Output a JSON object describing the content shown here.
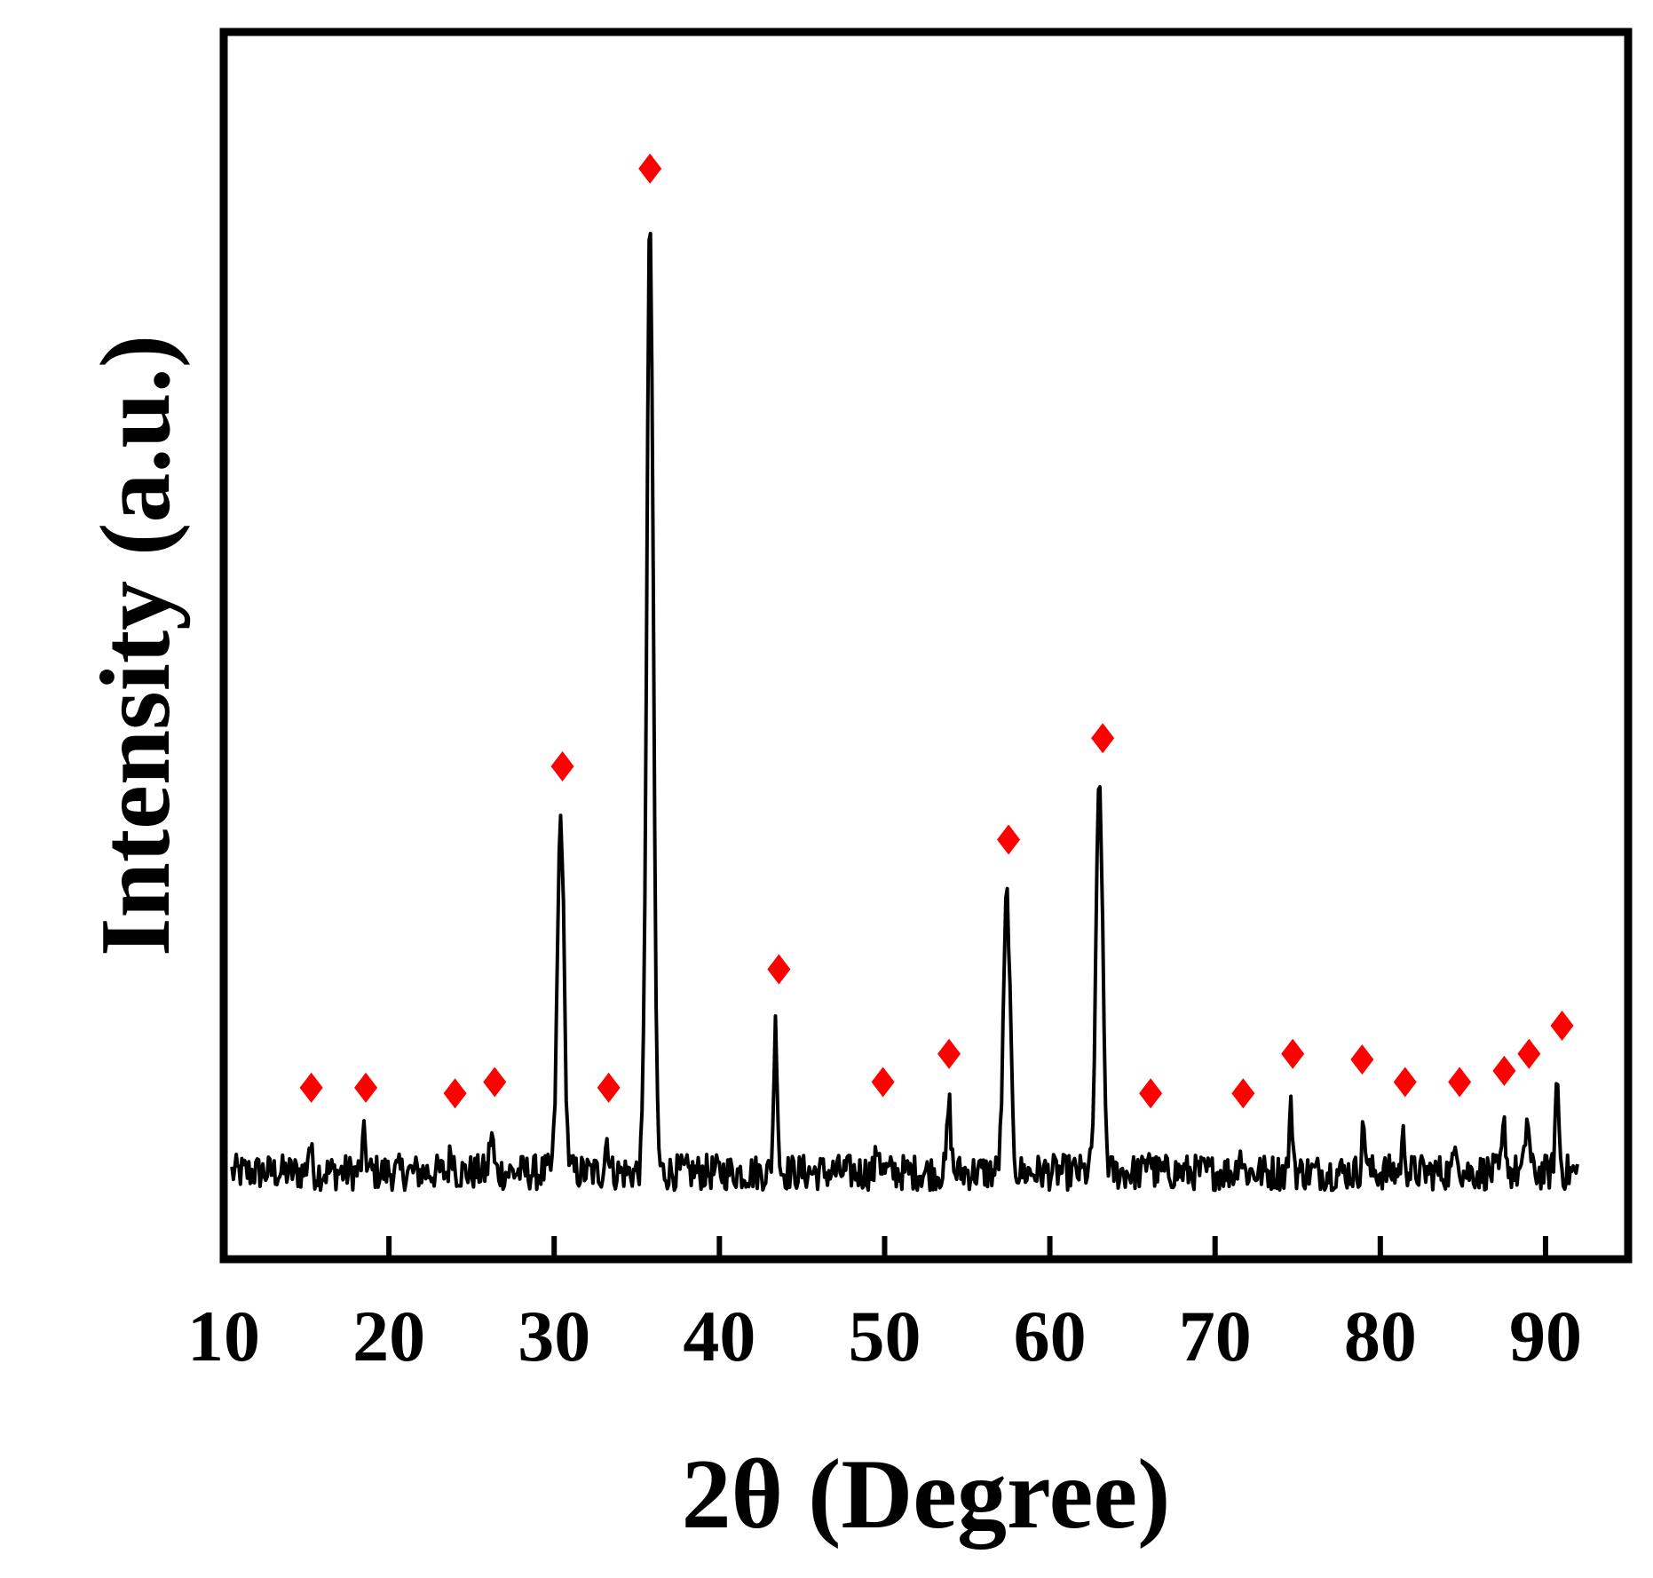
{
  "chart_data": {
    "type": "line",
    "title": "",
    "xlabel": "2θ (Degree)",
    "ylabel": "Intensity (a.u.)",
    "xlim": [
      10,
      95
    ],
    "ylim": [
      0,
      100
    ],
    "x_ticks": [
      10,
      20,
      30,
      40,
      50,
      60,
      70,
      80,
      90
    ],
    "x_tick_labels": [
      "10",
      "20",
      "30",
      "40",
      "50",
      "60",
      "70",
      "80",
      "90"
    ],
    "y_ticks_shown": false,
    "grid": false,
    "legend": "none",
    "colors": {
      "pattern": "#000000",
      "marker": "#ff0000",
      "frame": "#000000"
    },
    "pattern": {
      "x_start": 10.5,
      "x_end": 92.0,
      "baseline": 5.5,
      "noise": 1.6
    },
    "peaks": [
      {
        "x": 15.2,
        "y": 8
      },
      {
        "x": 18.5,
        "y": 8.5
      },
      {
        "x": 23.8,
        "y": 7.5
      },
      {
        "x": 26.2,
        "y": 9
      },
      {
        "x": 30.4,
        "y": 37
      },
      {
        "x": 33.2,
        "y": 8.5
      },
      {
        "x": 35.8,
        "y": 90
      },
      {
        "x": 43.4,
        "y": 18.5
      },
      {
        "x": 49.6,
        "y": 8
      },
      {
        "x": 53.9,
        "y": 11.5
      },
      {
        "x": 57.4,
        "y": 30
      },
      {
        "x": 63.0,
        "y": 40
      },
      {
        "x": 66.0,
        "y": 7.5
      },
      {
        "x": 71.5,
        "y": 7.5
      },
      {
        "x": 74.6,
        "y": 11
      },
      {
        "x": 79.0,
        "y": 9.5
      },
      {
        "x": 81.4,
        "y": 8.5
      },
      {
        "x": 84.6,
        "y": 8.5
      },
      {
        "x": 87.5,
        "y": 9.5
      },
      {
        "x": 88.9,
        "y": 10.5
      },
      {
        "x": 90.7,
        "y": 13.5
      }
    ],
    "markers": [
      {
        "x": 15.3,
        "y": 13
      },
      {
        "x": 18.6,
        "y": 13
      },
      {
        "x": 24.0,
        "y": 12.5
      },
      {
        "x": 26.4,
        "y": 13.5
      },
      {
        "x": 30.5,
        "y": 41.5
      },
      {
        "x": 33.3,
        "y": 13
      },
      {
        "x": 35.8,
        "y": 94.5
      },
      {
        "x": 43.6,
        "y": 23.5
      },
      {
        "x": 49.9,
        "y": 13.5
      },
      {
        "x": 53.9,
        "y": 16
      },
      {
        "x": 57.5,
        "y": 35
      },
      {
        "x": 63.2,
        "y": 44
      },
      {
        "x": 66.1,
        "y": 12.5
      },
      {
        "x": 71.7,
        "y": 12.5
      },
      {
        "x": 74.7,
        "y": 16
      },
      {
        "x": 78.9,
        "y": 15.5
      },
      {
        "x": 81.5,
        "y": 13.5
      },
      {
        "x": 84.8,
        "y": 13.5
      },
      {
        "x": 87.5,
        "y": 14.5
      },
      {
        "x": 89.0,
        "y": 16
      },
      {
        "x": 91.0,
        "y": 18.5
      }
    ]
  }
}
